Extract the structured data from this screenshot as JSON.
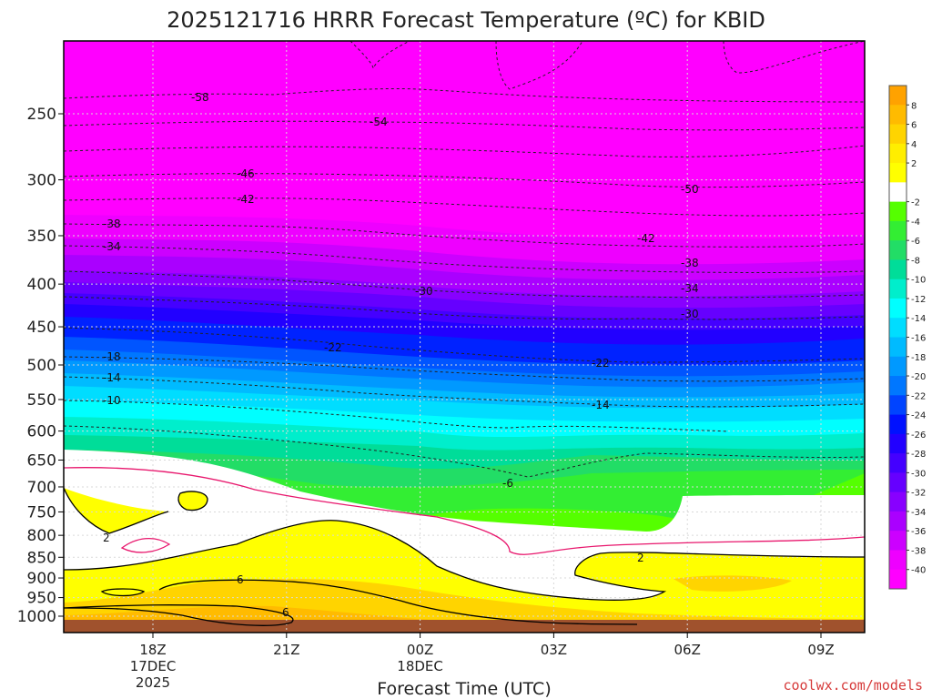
{
  "chart_data": {
    "type": "heatmap",
    "title": "2025121716 HRRR Forecast Temperature (ºC) for KBID",
    "xlabel": "Forecast Time (UTC)",
    "ylabel": "",
    "credit": "coolwx.com/models",
    "y_axis": {
      "ticks": [
        250,
        300,
        350,
        400,
        450,
        500,
        550,
        600,
        650,
        700,
        750,
        800,
        850,
        900,
        950,
        1000
      ],
      "range": [
        200,
        1025
      ],
      "scale": "log"
    },
    "x_axis": {
      "start_hour_label": "16Z 17DEC 2025",
      "ticks": [
        {
          "label": "18Z",
          "sub1": "17DEC",
          "sub2": "2025",
          "hour": 2
        },
        {
          "label": "21Z",
          "sub1": "",
          "sub2": "",
          "hour": 5
        },
        {
          "label": "00Z",
          "sub1": "18DEC",
          "sub2": "",
          "hour": 8
        },
        {
          "label": "03Z",
          "sub1": "",
          "sub2": "",
          "hour": 11
        },
        {
          "label": "06Z",
          "sub1": "",
          "sub2": "",
          "hour": 14
        },
        {
          "label": "09Z",
          "sub1": "",
          "sub2": "",
          "hour": 17
        }
      ],
      "range": [
        0,
        18
      ]
    },
    "grid": "dotted",
    "legend": "right colorbar",
    "colorbar": {
      "levels": [
        "8",
        "6",
        "4",
        "2",
        "-2",
        "-4",
        "-6",
        "-8",
        "-10",
        "-12",
        "-14",
        "-16",
        "-18",
        "-20",
        "-22",
        "-24",
        "-26",
        "-28",
        "-30",
        "-32",
        "-34",
        "-36",
        "-38",
        "-40"
      ],
      "colors": [
        "#ffa200",
        "#ffbb00",
        "#ffd400",
        "#ffee00",
        "#ffff00",
        "#ffffff",
        "#55ff00",
        "#33ee33",
        "#22dd66",
        "#00dd99",
        "#00eecc",
        "#00ffff",
        "#00ddff",
        "#00bbff",
        "#0099ff",
        "#0077ff",
        "#0044ff",
        "#0011ff",
        "#2200ff",
        "#4400ff",
        "#6600ff",
        "#8800ff",
        "#aa00ff",
        "#cc00ff",
        "#ee00ff",
        "#ff00ff"
      ]
    },
    "contours": [
      {
        "value": "-58",
        "pressure": 225
      },
      {
        "value": "-54",
        "pressure": 255
      },
      {
        "value": "-50",
        "pressure": 305
      },
      {
        "value": "-46",
        "pressure": 300
      },
      {
        "value": "-42",
        "pressure": 320
      },
      {
        "value": "-42",
        "pressure": 360
      },
      {
        "value": "-38",
        "pressure": 347
      },
      {
        "value": "-38",
        "pressure": 385
      },
      {
        "value": "-34",
        "pressure": 365
      },
      {
        "value": "-34",
        "pressure": 410
      },
      {
        "value": "-30",
        "pressure": 415
      },
      {
        "value": "-30",
        "pressure": 440
      },
      {
        "value": "-22",
        "pressure": 485
      },
      {
        "value": "-22",
        "pressure": 500
      },
      {
        "value": "-18",
        "pressure": 493
      },
      {
        "value": "-14",
        "pressure": 525
      },
      {
        "value": "-14",
        "pressure": 560
      },
      {
        "value": "-10",
        "pressure": 556
      },
      {
        "value": "-6",
        "pressure": 690
      },
      {
        "value": "2",
        "pressure": 805
      },
      {
        "value": "2",
        "pressure": 875
      },
      {
        "value": "6",
        "pressure": 910
      },
      {
        "value": "6",
        "pressure": 975
      }
    ]
  }
}
